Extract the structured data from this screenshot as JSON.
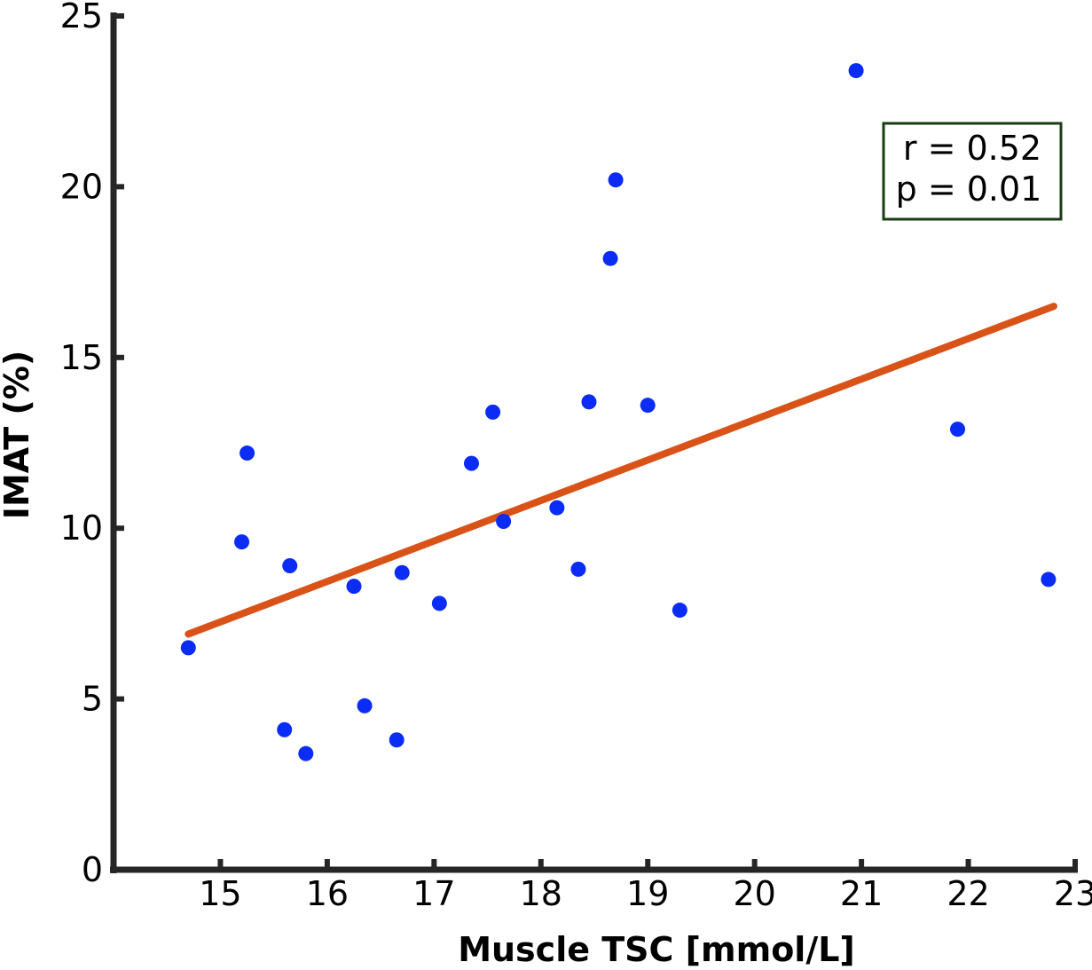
{
  "chart_data": {
    "type": "scatter",
    "xlabel": "Muscle TSC [mmol/L]",
    "ylabel": "IMAT (%)",
    "xlim": [
      14.0,
      23.0
    ],
    "ylim": [
      0,
      25
    ],
    "xticks": [
      15,
      16,
      17,
      18,
      19,
      20,
      21,
      22,
      23
    ],
    "yticks": [
      0,
      5,
      10,
      15,
      20,
      25
    ],
    "grid": false,
    "points": [
      {
        "x": 14.7,
        "y": 6.5
      },
      {
        "x": 15.2,
        "y": 9.6
      },
      {
        "x": 15.25,
        "y": 12.2
      },
      {
        "x": 15.6,
        "y": 4.1
      },
      {
        "x": 15.65,
        "y": 8.9
      },
      {
        "x": 15.8,
        "y": 3.4
      },
      {
        "x": 16.25,
        "y": 8.3
      },
      {
        "x": 16.35,
        "y": 4.8
      },
      {
        "x": 16.65,
        "y": 3.8
      },
      {
        "x": 16.7,
        "y": 8.7
      },
      {
        "x": 17.05,
        "y": 7.8
      },
      {
        "x": 17.35,
        "y": 11.9
      },
      {
        "x": 17.55,
        "y": 13.4
      },
      {
        "x": 17.65,
        "y": 10.2
      },
      {
        "x": 18.15,
        "y": 10.6
      },
      {
        "x": 18.35,
        "y": 8.8
      },
      {
        "x": 18.45,
        "y": 13.7
      },
      {
        "x": 18.65,
        "y": 17.9
      },
      {
        "x": 18.7,
        "y": 20.2
      },
      {
        "x": 19.0,
        "y": 13.6
      },
      {
        "x": 19.3,
        "y": 7.6
      },
      {
        "x": 20.95,
        "y": 23.4
      },
      {
        "x": 21.9,
        "y": 12.9
      },
      {
        "x": 22.75,
        "y": 8.5
      }
    ],
    "regression_line": {
      "x": [
        14.7,
        22.8
      ],
      "y": [
        6.9,
        16.5
      ],
      "color": "#d95319"
    },
    "point_color": "#0a2cf5",
    "annotation": {
      "lines": [
        "r = 0.52",
        "p = 0.01"
      ],
      "border_color": "#1a3d12",
      "position": "top-right"
    }
  }
}
